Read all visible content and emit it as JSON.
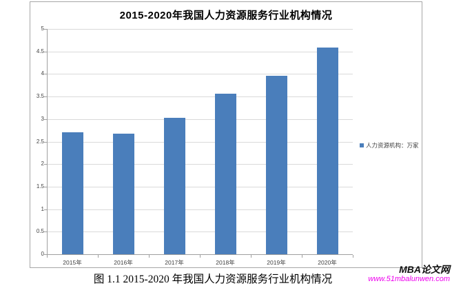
{
  "page": {
    "caption": "图 1.1 2015-2020 年我国人力资源服务行业机构情况",
    "watermark": {
      "site_name": "MBA论文网",
      "site_url": "www.51mbalunwen.com"
    }
  },
  "chart_data": {
    "type": "bar",
    "title": "2015-2020年我国人力资源服务行业机构情况",
    "categories": [
      "2015年",
      "2016年",
      "2017年",
      "2018年",
      "2019年",
      "2020年"
    ],
    "series": [
      {
        "name": "人力资源机构：万家",
        "values": [
          2.7,
          2.67,
          3.02,
          3.57,
          3.96,
          4.58
        ]
      }
    ],
    "values": [
      2.7,
      2.67,
      3.02,
      3.57,
      3.96,
      4.58
    ],
    "xlabel": "",
    "ylabel": "",
    "ylim": [
      0,
      5
    ],
    "ytick_step": 0.5,
    "grid": true,
    "legend_position": "right",
    "colors": {
      "bar": "#4a7ebb",
      "grid": "#d9d9d9",
      "axis": "#9f9f9f",
      "frame_border": "#a6a6a6",
      "watermark_url": "#ee00ee"
    }
  }
}
